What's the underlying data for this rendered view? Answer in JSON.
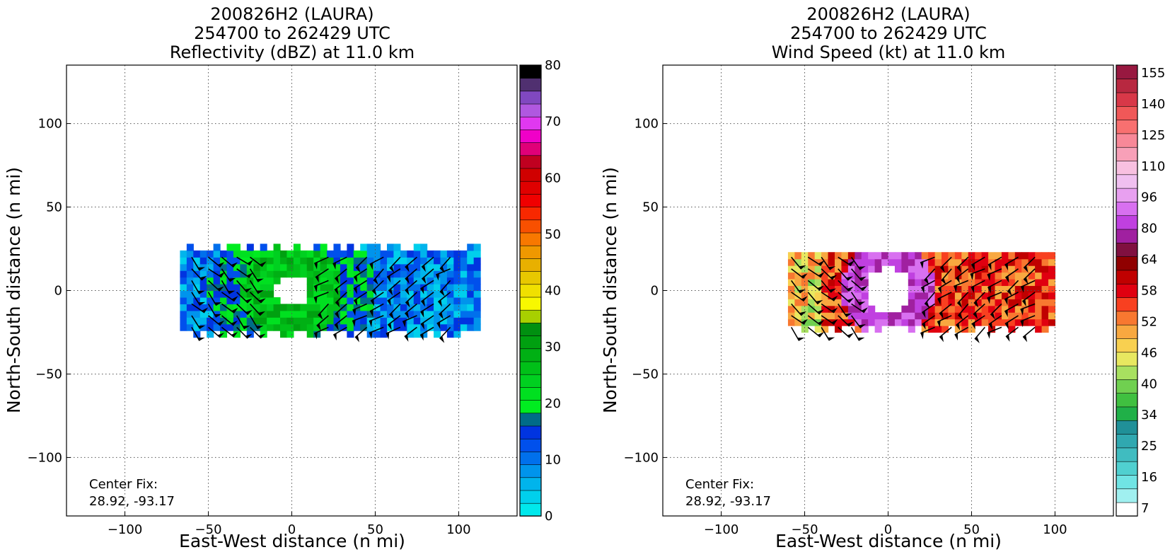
{
  "chart_data": [
    {
      "type": "heatmap",
      "title_lines": [
        "200826H2 (LAURA)",
        "254700 to 262429 UTC",
        "Reflectivity (dBZ) at 11.0 km"
      ],
      "xlabel": "East-West distance (n mi)",
      "ylabel": "North-South distance (n mi)",
      "xlim": [
        -135,
        135
      ],
      "ylim": [
        -135,
        135
      ],
      "xticks": [
        -100,
        -50,
        0,
        50,
        100
      ],
      "yticks": [
        -100,
        -50,
        0,
        50,
        100
      ],
      "xtick_labels": [
        "−100",
        "−50",
        "0",
        "50",
        "100"
      ],
      "ytick_labels": [
        "−100",
        "−50",
        "0",
        "50",
        "100"
      ],
      "grid": true,
      "annotation_lines": [
        "Center Fix:",
        "28.92, -93.17"
      ],
      "colorbar": {
        "levels": 32,
        "labels": [
          "0",
          "10",
          "20",
          "30",
          "40",
          "50",
          "60",
          "70",
          "80"
        ],
        "label_positions": [
          0,
          4,
          8,
          12,
          16,
          20,
          24,
          28,
          32
        ],
        "colors": [
          "#00e8ec",
          "#00d0ec",
          "#00b4ec",
          "#0094ec",
          "#0070ec",
          "#0050ec",
          "#0034e0",
          "#006c88",
          "#00ec20",
          "#00e020",
          "#00d020",
          "#00c018",
          "#00b014",
          "#00a010",
          "#009010",
          "#a8d000",
          "#f8f800",
          "#f0e000",
          "#e8c800",
          "#e8b000",
          "#f09800",
          "#f87800",
          "#f85000",
          "#f82800",
          "#f00000",
          "#e00000",
          "#d00000",
          "#c00020",
          "#e00078",
          "#f000c8",
          "#e038f0",
          "#b058e0",
          "#8048c0",
          "#503070",
          "#000000"
        ],
        "orientation": "vertical"
      },
      "series": [
        {
          "name": "",
          "field_shape": "annulus",
          "center": [
            0,
            0
          ],
          "eye_radius_nmi": 10,
          "extent_x": [
            -67,
            112
          ],
          "extent_y": [
            -28,
            28
          ]
        }
      ]
    },
    {
      "type": "heatmap",
      "title_lines": [
        "200826H2 (LAURA)",
        "254700 to 262429 UTC",
        "Wind Speed (kt) at 11.0 km"
      ],
      "xlabel": "East-West distance (n mi)",
      "ylabel": "North-South distance (n mi)",
      "xlim": [
        -135,
        135
      ],
      "ylim": [
        -135,
        135
      ],
      "xticks": [
        -100,
        -50,
        0,
        50,
        100
      ],
      "yticks": [
        -100,
        -50,
        0,
        50,
        100
      ],
      "xtick_labels": [
        "−100",
        "−50",
        "0",
        "50",
        "100"
      ],
      "ytick_labels": [
        "−100",
        "−50",
        "0",
        "50",
        "100"
      ],
      "grid": true,
      "annotation_lines": [
        "Center Fix:",
        "28.92, -93.17"
      ],
      "colorbar": {
        "levels": 27,
        "labels": [
          "7",
          "16",
          "25",
          "34",
          "40",
          "46",
          "52",
          "58",
          "64",
          "80",
          "96",
          "110",
          "125",
          "140",
          "155"
        ],
        "label_positions": [
          0.5,
          2.5,
          4.5,
          6.5,
          8.5,
          10.5,
          12.5,
          14.5,
          16.5,
          18.5,
          20.5,
          22.5,
          24.5,
          26.5,
          28.5
        ],
        "colors": [
          "#ffffff",
          "#a0f0f0",
          "#70e4e4",
          "#50d0d0",
          "#40bcc0",
          "#30a8b0",
          "#209098",
          "#20b048",
          "#40c040",
          "#70d050",
          "#a8e060",
          "#e8e860",
          "#f8d050",
          "#f8a840",
          "#f87830",
          "#f84020",
          "#e00010",
          "#c00000",
          "#900000",
          "#801040",
          "#a020a0",
          "#c040e0",
          "#d870f0",
          "#e8a0f0",
          "#f0c0f0",
          "#f8c0e0",
          "#f8a0b8",
          "#f88898",
          "#f87070",
          "#f05858",
          "#d83848",
          "#b82840",
          "#981840"
        ],
        "orientation": "vertical"
      },
      "series": [
        {
          "name": "",
          "field_shape": "annulus",
          "center": [
            0,
            0
          ],
          "eye_radius_nmi": 14,
          "extent_x": [
            -60,
            98
          ],
          "extent_y": [
            -25,
            25
          ]
        }
      ]
    }
  ]
}
